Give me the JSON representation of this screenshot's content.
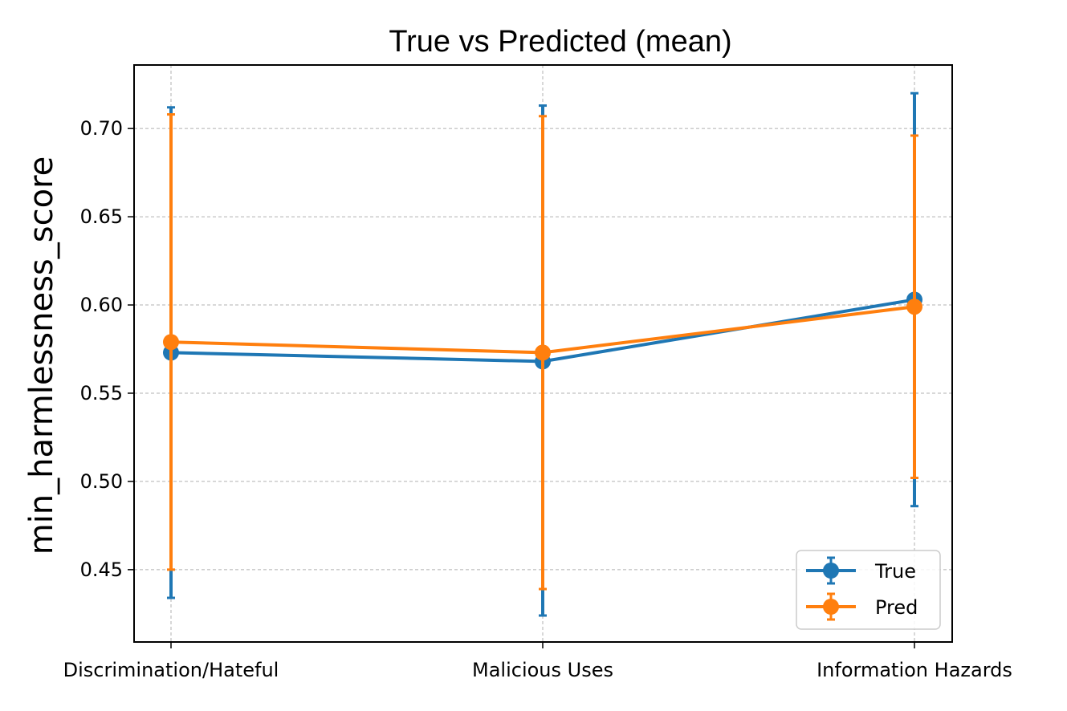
{
  "chart_data": {
    "type": "line",
    "title": "True vs Predicted (mean)",
    "xlabel": "",
    "ylabel": "min_harmlessness_score",
    "categories": [
      "Discrimination/Hateful",
      "Malicious Uses",
      "Information Hazards"
    ],
    "ylim": [
      0.409,
      0.736
    ],
    "yticks": [
      "0.45",
      "0.50",
      "0.55",
      "0.60",
      "0.65",
      "0.70"
    ],
    "grid": true,
    "legend_position": "lower-right",
    "series": [
      {
        "name": "True",
        "color": "#1f77b4",
        "values": [
          0.573,
          0.568,
          0.603
        ],
        "error_low": [
          0.434,
          0.424,
          0.486
        ],
        "error_high": [
          0.712,
          0.713,
          0.72
        ]
      },
      {
        "name": "Pred",
        "color": "#ff7f0e",
        "values": [
          0.579,
          0.573,
          0.599
        ],
        "error_low": [
          0.45,
          0.439,
          0.502
        ],
        "error_high": [
          0.708,
          0.707,
          0.696
        ]
      }
    ]
  }
}
